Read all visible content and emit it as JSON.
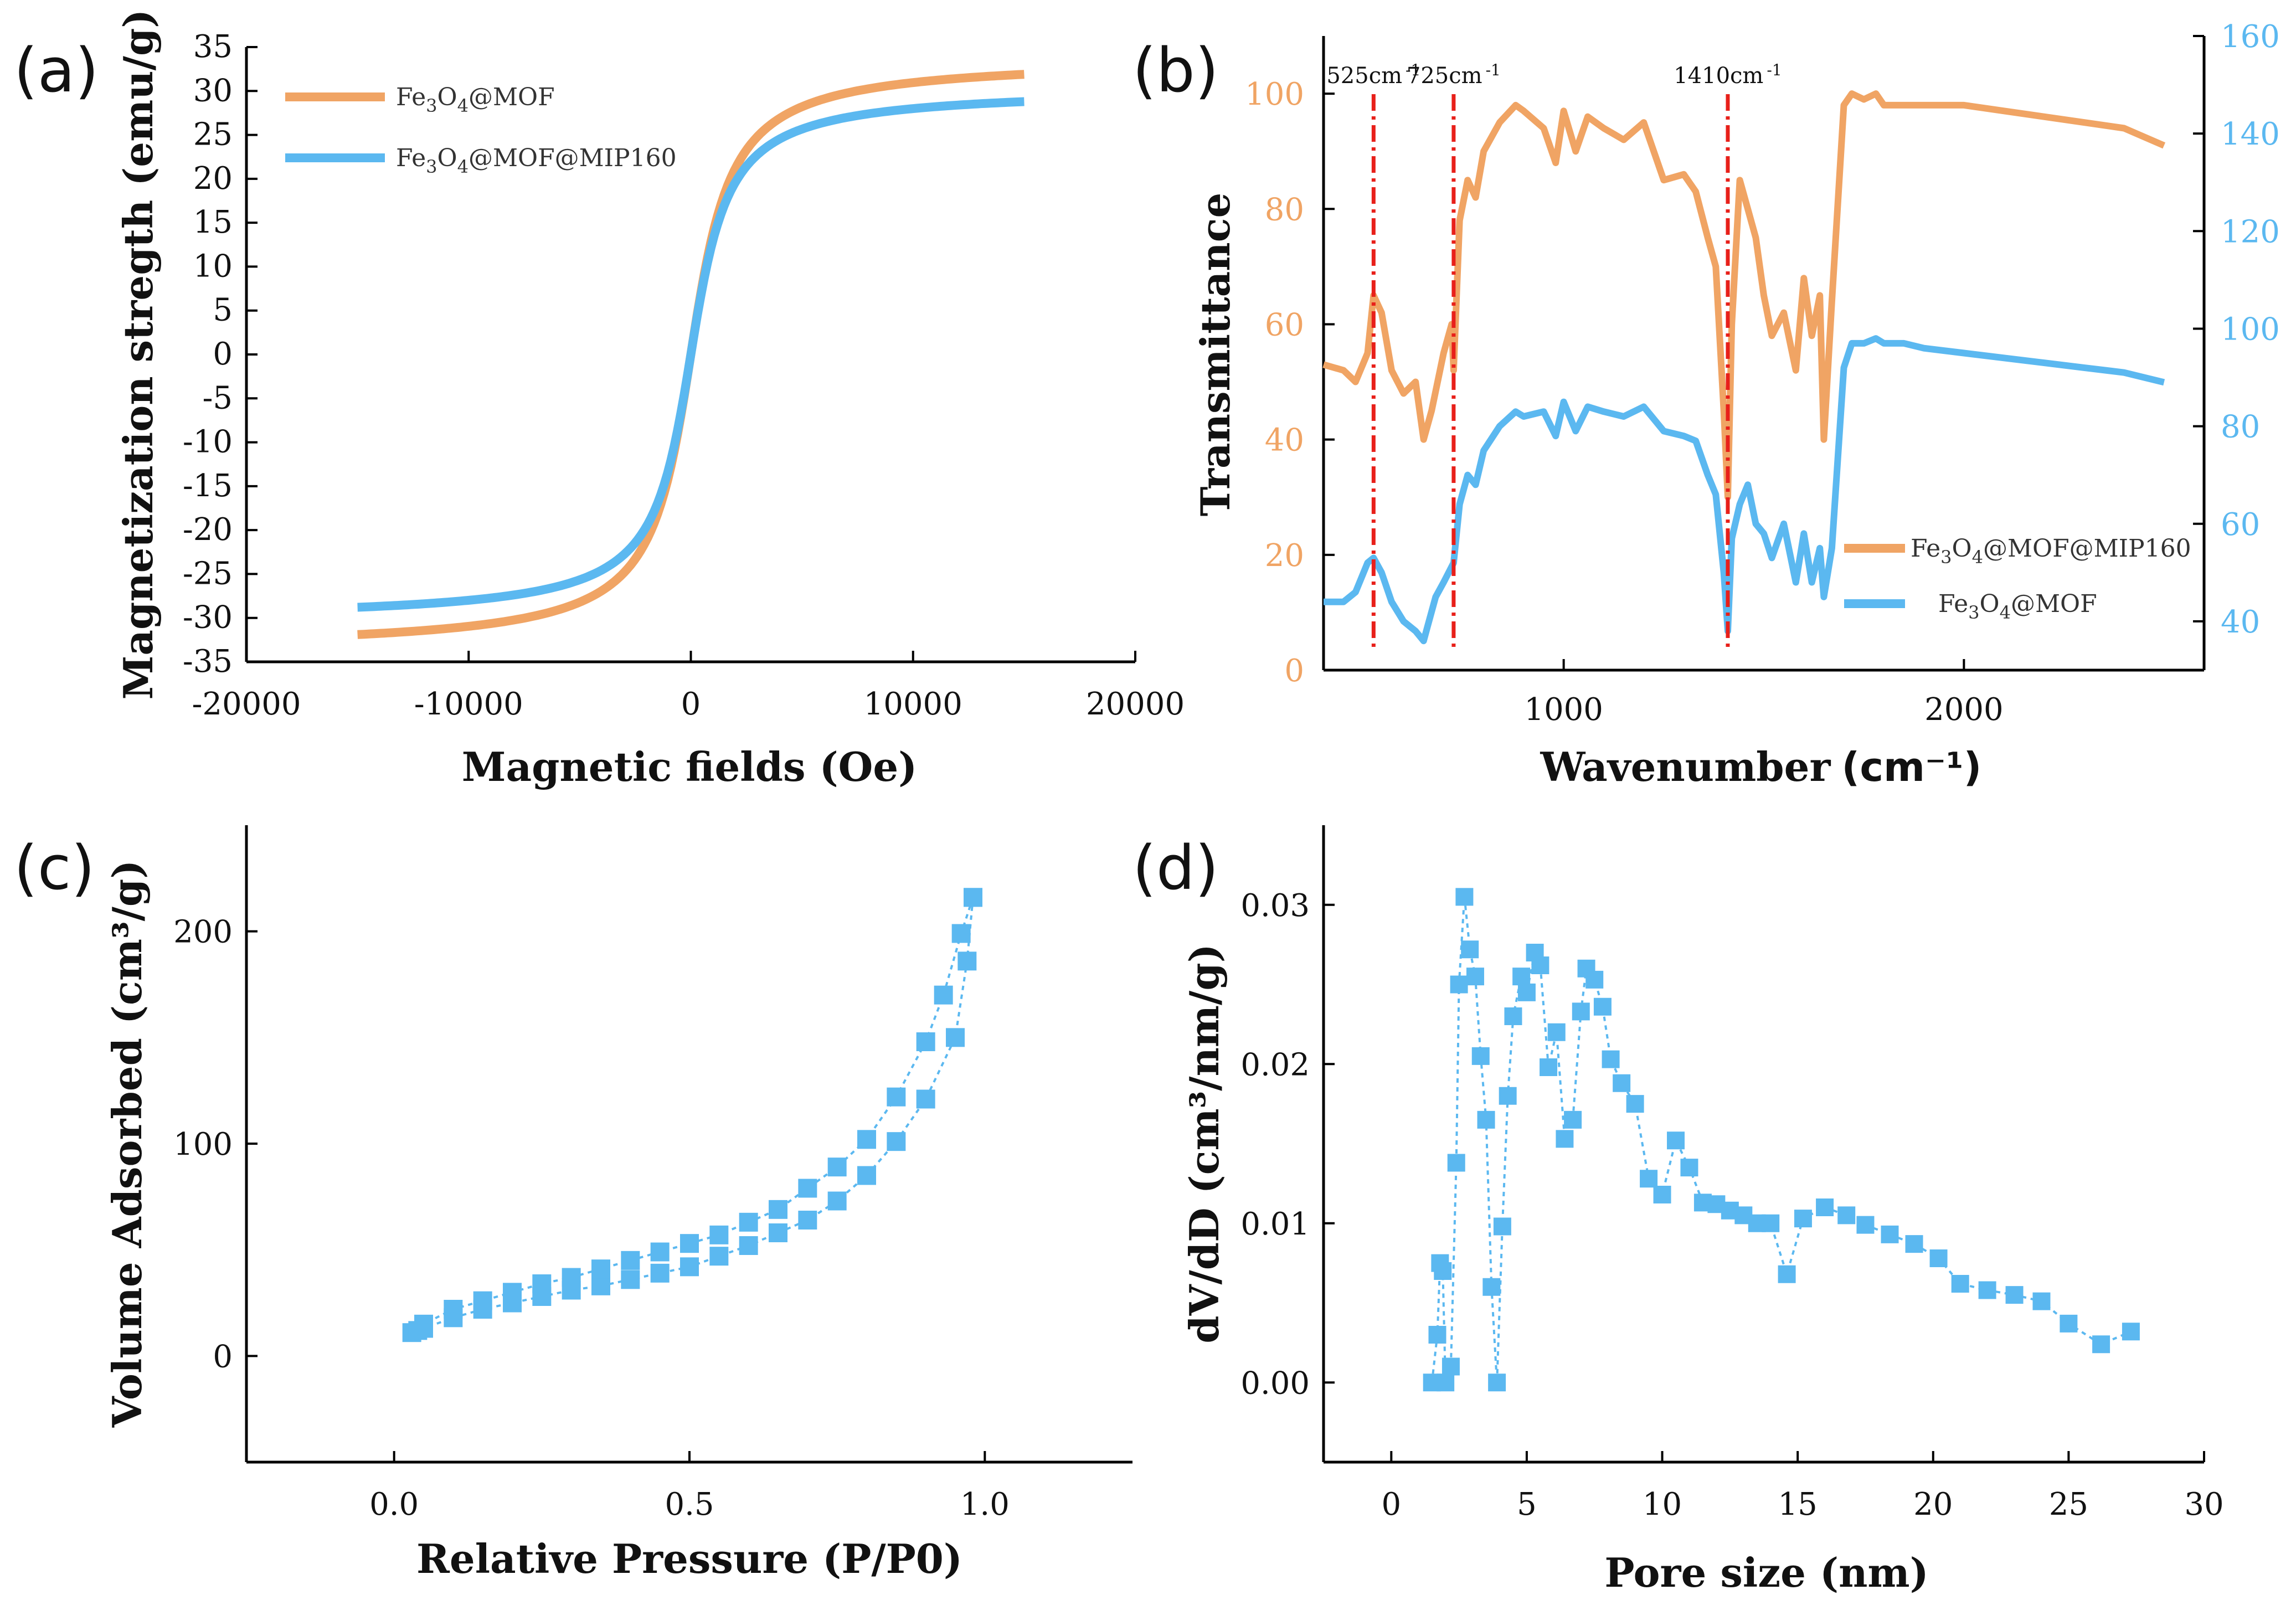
{
  "colors": {
    "orange": "#F0A464",
    "blue": "#5BB8F0",
    "red": "#E8201A",
    "axis": "#000000"
  },
  "chart_data": [
    {
      "panel": "(a)",
      "type": "line",
      "xlabel": "Magnetic fields (Oe)",
      "ylabel": "Magnetization stregth (emu/g)",
      "xlim": [
        -20000,
        20000
      ],
      "ylim": [
        -35,
        35
      ],
      "xticks": [
        "-20000",
        "-10000",
        "0",
        "10000",
        "20000"
      ],
      "yticks": [
        "35",
        "30",
        "25",
        "20",
        "15",
        "10",
        "5",
        "0",
        "-5",
        "-10",
        "-15",
        "-20",
        "-25",
        "-30",
        "-35"
      ],
      "legend": "top-left",
      "series": [
        {
          "name": "Fe3O4@MOF",
          "legend_main": "Fe",
          "legend_sub1": "3",
          "legend_mid": "O",
          "legend_sub2": "4",
          "legend_tail": "@MOF",
          "color": "orange",
          "ms": 33.8,
          "a": 1330
        },
        {
          "name": "Fe3O4@MOF@MIP160",
          "legend_main": "Fe",
          "legend_sub1": "3",
          "legend_mid": "O",
          "legend_sub2": "4",
          "legend_tail": "@MOF@MIP160",
          "color": "blue",
          "ms": 30.4,
          "a": 1250
        }
      ]
    },
    {
      "panel": "(b)",
      "type": "line",
      "xlabel": "Wavenumber",
      "xunit": "(cm⁻¹)",
      "ylabel": "Transmittance",
      "xlim": [
        400,
        2600
      ],
      "ylim_left": [
        0,
        110
      ],
      "ylim_right": [
        30,
        160
      ],
      "xticks": [
        "1000",
        "2000"
      ],
      "yticks_left": [
        "0",
        "20",
        "40",
        "60",
        "80",
        "100"
      ],
      "yticks_right": [
        "40",
        "60",
        "80",
        "100",
        "120",
        "140",
        "160"
      ],
      "annotations": [
        {
          "text": "525cm",
          "sup": "-1",
          "x": 525
        },
        {
          "text": "725cm",
          "sup": "-1",
          "x": 725
        },
        {
          "text": "1410cm",
          "sup": "-1",
          "x": 1410
        }
      ],
      "legend": "bottom-right",
      "series": [
        {
          "name": "Fe3O4@MOF@MIP160",
          "legend_main": "Fe",
          "legend_sub1": "3",
          "legend_mid": "O",
          "legend_sub2": "4",
          "legend_tail": "@MOF@MIP160",
          "color": "orange",
          "axis": "left",
          "x": [
            400,
            450,
            480,
            510,
            525,
            545,
            570,
            600,
            630,
            650,
            670,
            700,
            720,
            725,
            740,
            760,
            780,
            800,
            840,
            880,
            900,
            950,
            980,
            1000,
            1030,
            1060,
            1100,
            1150,
            1200,
            1250,
            1300,
            1330,
            1360,
            1380,
            1400,
            1410,
            1420,
            1440,
            1460,
            1480,
            1500,
            1520,
            1550,
            1580,
            1600,
            1620,
            1640,
            1650,
            1670,
            1700,
            1720,
            1750,
            1780,
            1800,
            1850,
            1900,
            2000,
            2100,
            2200,
            2300,
            2400,
            2500
          ],
          "y": [
            53,
            52,
            50,
            55,
            65,
            62,
            52,
            48,
            50,
            40,
            45,
            55,
            60,
            52,
            78,
            85,
            82,
            90,
            95,
            98,
            97,
            94,
            88,
            97,
            90,
            96,
            94,
            92,
            95,
            85,
            86,
            83,
            75,
            70,
            45,
            30,
            60,
            85,
            80,
            75,
            65,
            58,
            62,
            52,
            68,
            58,
            65,
            40,
            64,
            98,
            100,
            99,
            100,
            98,
            98,
            98,
            98,
            97,
            96,
            95,
            94,
            91
          ]
        },
        {
          "name": "Fe3O4@MOF",
          "legend_main": "Fe",
          "legend_sub1": "3",
          "legend_mid": "O",
          "legend_sub2": "4",
          "legend_tail": "@MOF",
          "color": "blue",
          "axis": "right",
          "x": [
            400,
            450,
            480,
            510,
            525,
            545,
            570,
            600,
            630,
            650,
            660,
            680,
            700,
            725,
            740,
            760,
            780,
            800,
            840,
            880,
            900,
            950,
            980,
            1000,
            1030,
            1060,
            1100,
            1150,
            1200,
            1250,
            1300,
            1330,
            1360,
            1380,
            1400,
            1410,
            1420,
            1440,
            1460,
            1480,
            1500,
            1520,
            1550,
            1580,
            1600,
            1620,
            1640,
            1650,
            1670,
            1700,
            1720,
            1750,
            1780,
            1800,
            1850,
            1900,
            2000,
            2100,
            2200,
            2300,
            2400,
            2500
          ],
          "y": [
            44,
            44,
            46,
            52,
            53,
            50,
            44,
            40,
            38,
            36,
            39,
            45,
            48,
            52,
            64,
            70,
            68,
            75,
            80,
            83,
            82,
            83,
            78,
            85,
            79,
            84,
            83,
            82,
            84,
            79,
            78,
            77,
            70,
            66,
            50,
            38,
            57,
            64,
            68,
            60,
            58,
            53,
            60,
            48,
            58,
            48,
            55,
            45,
            55,
            92,
            97,
            97,
            98,
            97,
            97,
            96,
            95,
            94,
            93,
            92,
            91,
            89
          ]
        }
      ]
    },
    {
      "panel": "(c)",
      "type": "scatter",
      "xlabel": "Relative Pressure (P/P0)",
      "ylabel": "Volume Adsorbed (cm³/g)",
      "xlim": [
        -0.25,
        1.25
      ],
      "ylim": [
        -50,
        250
      ],
      "xticks": [
        "0.0",
        "0.5",
        "1.0"
      ],
      "yticks": [
        "0",
        "100",
        "200"
      ],
      "series": [
        {
          "name": "adsorption",
          "color": "blue",
          "x": [
            0.03,
            0.04,
            0.05,
            0.1,
            0.15,
            0.2,
            0.25,
            0.3,
            0.35,
            0.4,
            0.45,
            0.5,
            0.55,
            0.6,
            0.65,
            0.7,
            0.75,
            0.8,
            0.85,
            0.9,
            0.95,
            0.97,
            0.98
          ],
          "y": [
            11,
            12,
            13,
            18,
            22,
            25,
            28,
            31,
            33,
            36,
            39,
            42,
            47,
            52,
            58,
            64,
            73,
            85,
            101,
            121,
            150,
            186,
            216
          ]
        },
        {
          "name": "desorption",
          "color": "blue",
          "x": [
            0.98,
            0.96,
            0.93,
            0.9,
            0.85,
            0.8,
            0.75,
            0.7,
            0.65,
            0.6,
            0.55,
            0.5,
            0.45,
            0.4,
            0.35,
            0.3,
            0.25,
            0.2,
            0.15,
            0.1,
            0.05
          ],
          "y": [
            216,
            199,
            170,
            148,
            122,
            102,
            89,
            79,
            69,
            63,
            57,
            53,
            49,
            45,
            41,
            37,
            34,
            30,
            26,
            22,
            15
          ]
        }
      ]
    },
    {
      "panel": "(d)",
      "type": "scatter",
      "xlabel": "Pore size (nm)",
      "ylabel": "dV/dD (cm³/nm/g)",
      "xlim": [
        -2.5,
        30
      ],
      "ylim": [
        -0.005,
        0.035
      ],
      "xticks": [
        "0",
        "5",
        "10",
        "15",
        "20",
        "25",
        "30"
      ],
      "yticks": [
        "0.00",
        "0.01",
        "0.02",
        "0.03"
      ],
      "series": [
        {
          "name": "pore size distribution",
          "color": "blue",
          "x": [
            1.5,
            1.7,
            1.8,
            1.9,
            2.0,
            2.2,
            2.4,
            2.5,
            2.7,
            2.9,
            3.1,
            3.3,
            3.5,
            3.7,
            3.9,
            4.1,
            4.3,
            4.5,
            4.8,
            5.0,
            5.3,
            5.5,
            5.8,
            6.1,
            6.4,
            6.7,
            7.0,
            7.2,
            7.5,
            7.8,
            8.1,
            8.5,
            9.0,
            9.5,
            10.0,
            10.5,
            11.0,
            11.5,
            12.0,
            12.5,
            13.0,
            13.5,
            14.0,
            14.6,
            15.2,
            16.0,
            16.8,
            17.5,
            18.4,
            19.3,
            20.2,
            21.0,
            22.0,
            23.0,
            24.0,
            25.0,
            26.2,
            27.3
          ],
          "y": [
            0.0,
            0.003,
            0.0075,
            0.007,
            0.0,
            0.001,
            0.0138,
            0.025,
            0.0305,
            0.0272,
            0.0255,
            0.0205,
            0.0165,
            0.006,
            0.0,
            0.0098,
            0.018,
            0.023,
            0.0255,
            0.0245,
            0.027,
            0.0262,
            0.0198,
            0.022,
            0.0153,
            0.0165,
            0.0233,
            0.026,
            0.0253,
            0.0236,
            0.0203,
            0.0188,
            0.0175,
            0.0128,
            0.0118,
            0.0152,
            0.0135,
            0.0113,
            0.0112,
            0.0108,
            0.0105,
            0.01,
            0.01,
            0.0068,
            0.0103,
            0.011,
            0.0105,
            0.0099,
            0.0093,
            0.0087,
            0.0078,
            0.0062,
            0.0058,
            0.0055,
            0.0051,
            0.0037,
            0.0024,
            0.0032
          ]
        }
      ]
    }
  ]
}
